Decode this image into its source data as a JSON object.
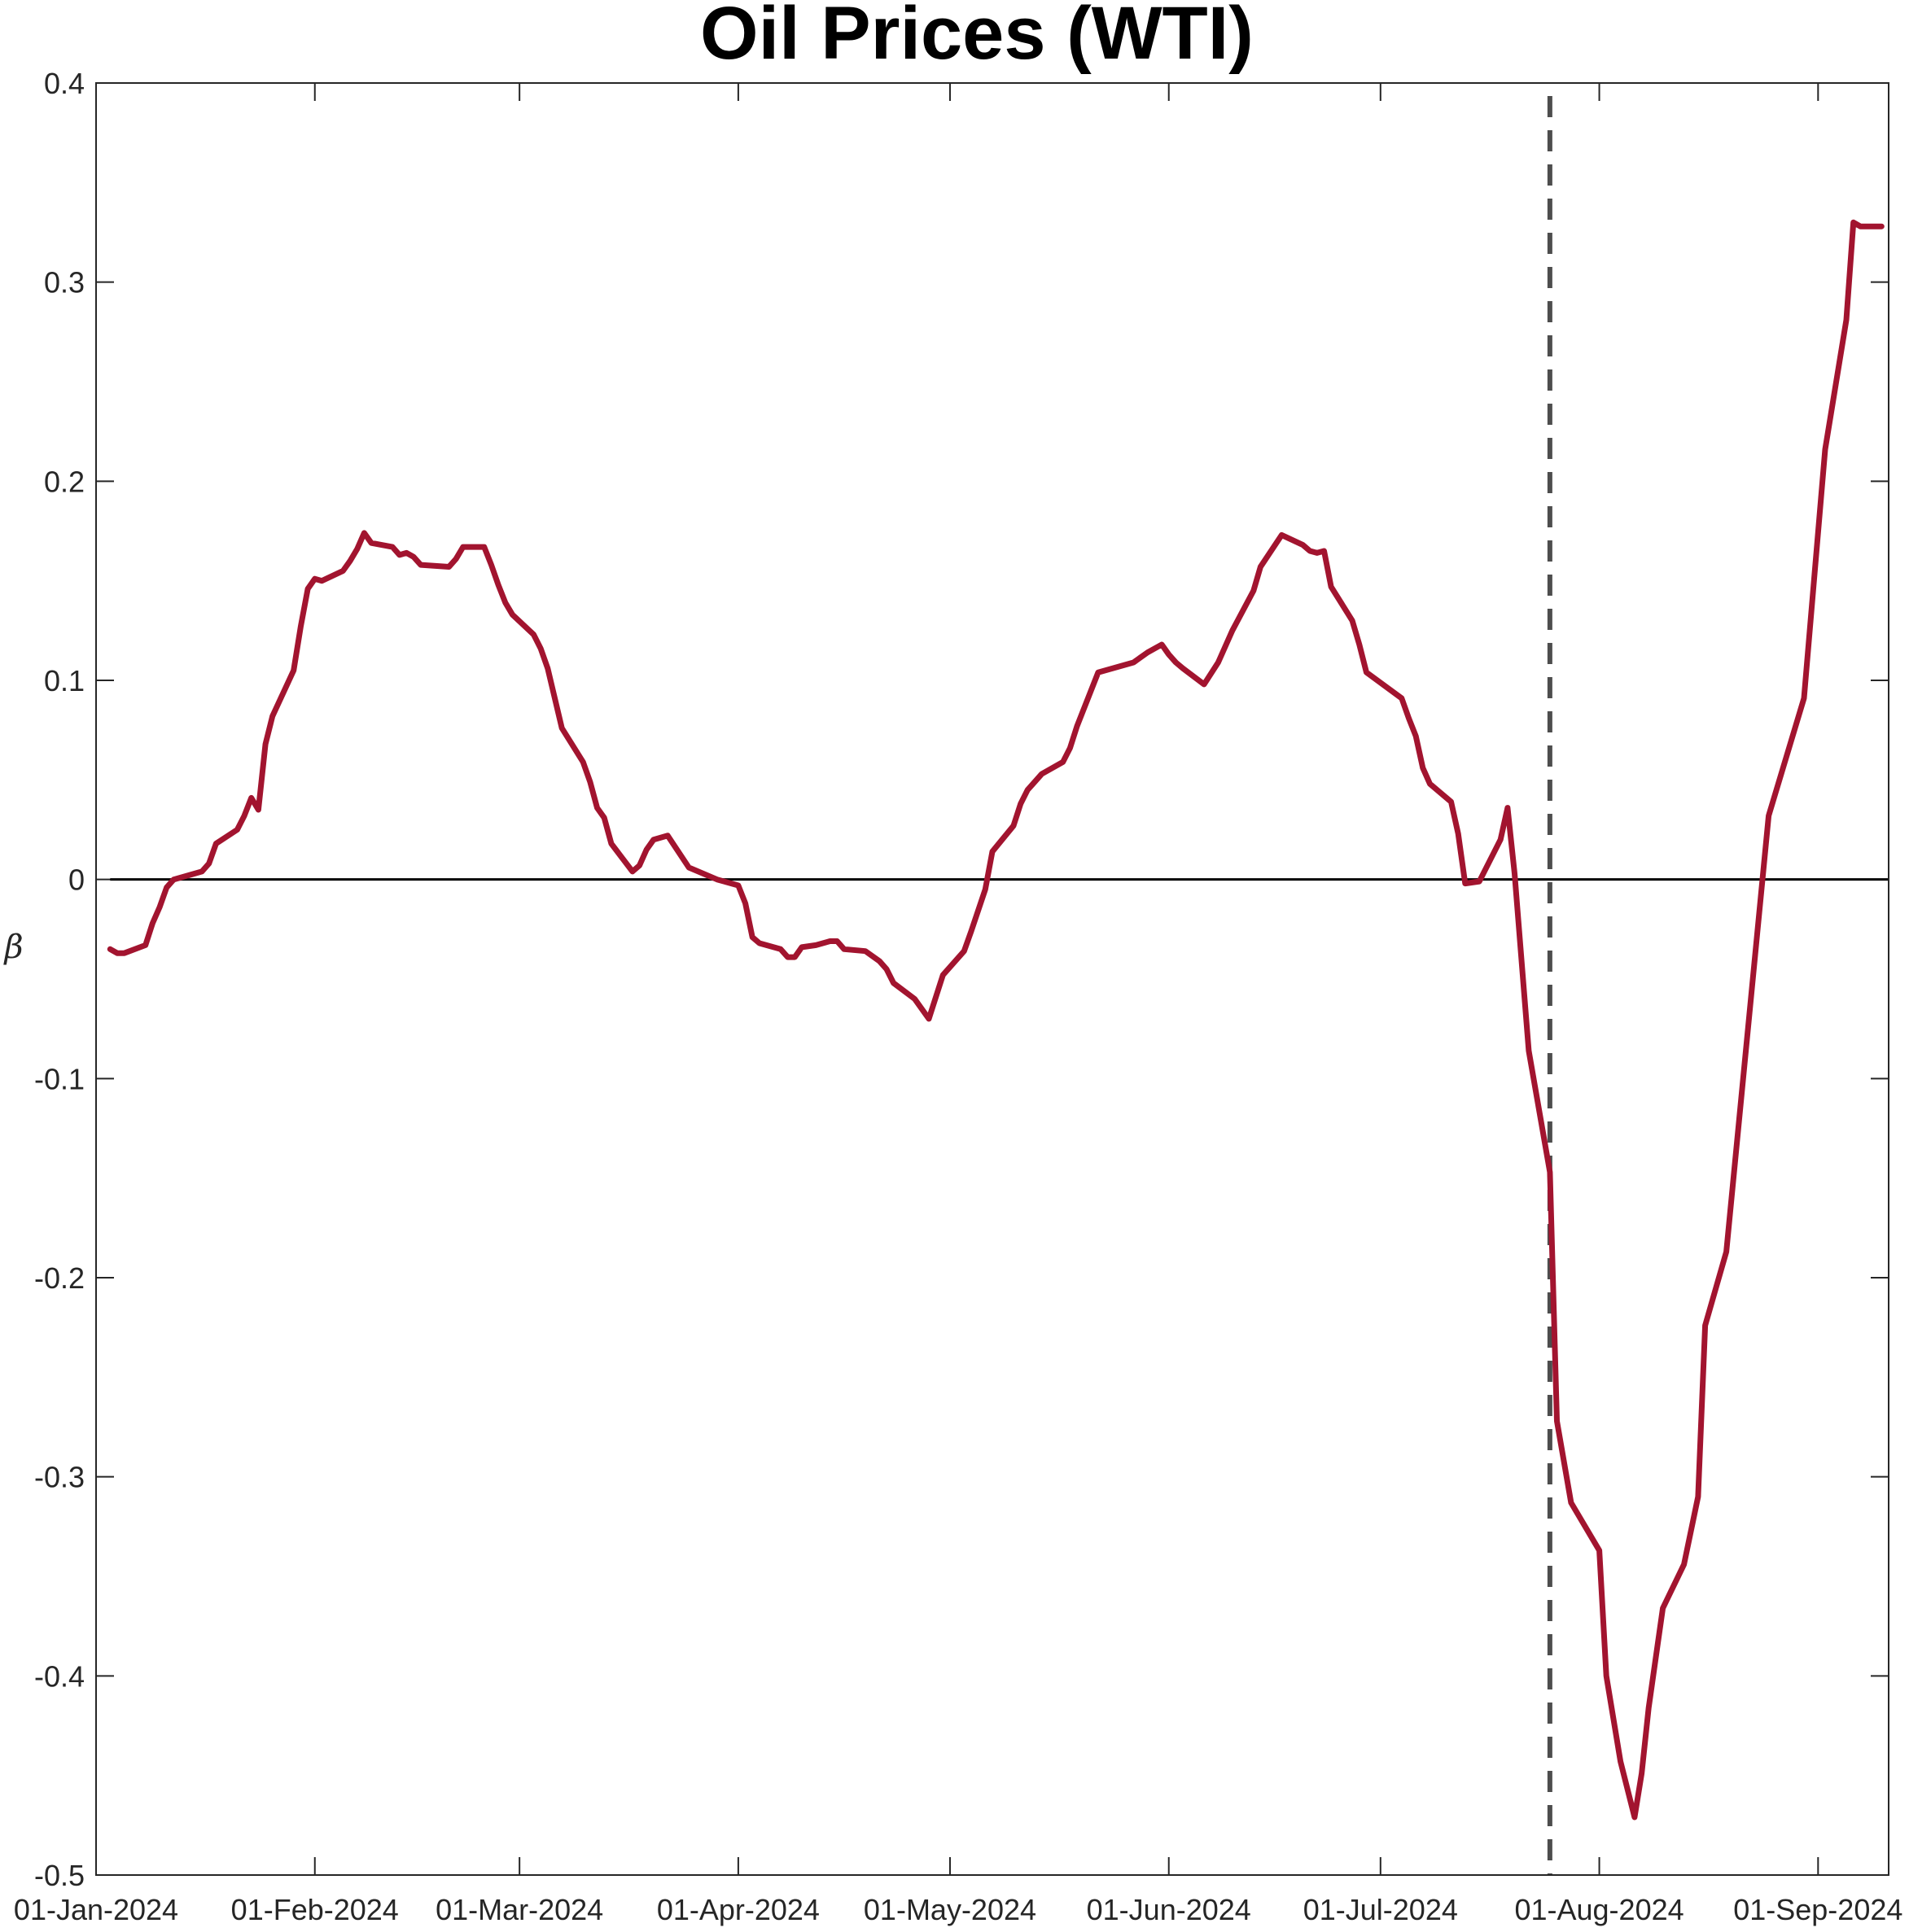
{
  "chart_data": {
    "type": "line",
    "title": "Oil Prices (WTI)",
    "xlabel": "",
    "ylabel": "β",
    "xlim": [
      "2024-01-01",
      "2024-09-11"
    ],
    "ylim": [
      -0.5,
      0.4
    ],
    "yticks": [
      -0.5,
      -0.4,
      -0.3,
      -0.2,
      -0.1,
      0,
      0.1,
      0.2,
      0.3,
      0.4
    ],
    "ytick_labels": [
      "-0.5",
      "-0.4",
      "-0.3",
      "-0.2",
      "-0.1",
      "0",
      "0.1",
      "0.2",
      "0.3",
      "0.4"
    ],
    "xticks": [
      "2024-01-01",
      "2024-02-01",
      "2024-03-01",
      "2024-04-01",
      "2024-05-01",
      "2024-06-01",
      "2024-07-01",
      "2024-08-01",
      "2024-09-01"
    ],
    "xtick_labels": [
      "01-Jan-2024",
      "01-Feb-2024",
      "01-Mar-2024",
      "01-Apr-2024",
      "01-May-2024",
      "01-Jun-2024",
      "01-Jul-2024",
      "01-Aug-2024",
      "01-Sep-2024"
    ],
    "grid": false,
    "zero_line": {
      "y": 0,
      "color": "#000000"
    },
    "vertical_marker": {
      "x": "2024-07-25",
      "style": "dashed",
      "color": "#4d4d4d"
    },
    "series": [
      {
        "color": "#a2142f",
        "points": [
          [
            "2024-01-03",
            -0.035
          ],
          [
            "2024-01-04",
            -0.037
          ],
          [
            "2024-01-05",
            -0.037
          ],
          [
            "2024-01-08",
            -0.033
          ],
          [
            "2024-01-09",
            -0.022
          ],
          [
            "2024-01-10",
            -0.014
          ],
          [
            "2024-01-11",
            -0.004
          ],
          [
            "2024-01-12",
            0.0
          ],
          [
            "2024-01-16",
            0.004
          ],
          [
            "2024-01-17",
            0.008
          ],
          [
            "2024-01-18",
            0.018
          ],
          [
            "2024-01-21",
            0.025
          ],
          [
            "2024-01-22",
            0.032
          ],
          [
            "2024-01-23",
            0.041
          ],
          [
            "2024-01-24",
            0.035
          ],
          [
            "2024-01-25",
            0.068
          ],
          [
            "2024-01-26",
            0.082
          ],
          [
            "2024-01-29",
            0.105
          ],
          [
            "2024-01-30",
            0.127
          ],
          [
            "2024-01-31",
            0.146
          ],
          [
            "2024-02-01",
            0.151
          ],
          [
            "2024-02-02",
            0.15
          ],
          [
            "2024-02-05",
            0.155
          ],
          [
            "2024-02-06",
            0.16
          ],
          [
            "2024-02-07",
            0.166
          ],
          [
            "2024-02-08",
            0.174
          ],
          [
            "2024-02-09",
            0.169
          ],
          [
            "2024-02-12",
            0.167
          ],
          [
            "2024-02-13",
            0.163
          ],
          [
            "2024-02-14",
            0.164
          ],
          [
            "2024-02-15",
            0.162
          ],
          [
            "2024-02-16",
            0.158
          ],
          [
            "2024-02-20",
            0.157
          ],
          [
            "2024-02-21",
            0.161
          ],
          [
            "2024-02-22",
            0.167
          ],
          [
            "2024-02-25",
            0.167
          ],
          [
            "2024-02-26",
            0.158
          ],
          [
            "2024-02-27",
            0.148
          ],
          [
            "2024-02-28",
            0.139
          ],
          [
            "2024-02-29",
            0.133
          ],
          [
            "2024-03-03",
            0.123
          ],
          [
            "2024-03-04",
            0.116
          ],
          [
            "2024-03-05",
            0.106
          ],
          [
            "2024-03-07",
            0.076
          ],
          [
            "2024-03-10",
            0.059
          ],
          [
            "2024-03-11",
            0.049
          ],
          [
            "2024-03-12",
            0.036
          ],
          [
            "2024-03-13",
            0.031
          ],
          [
            "2024-03-14",
            0.018
          ],
          [
            "2024-03-17",
            0.004
          ],
          [
            "2024-03-18",
            0.007
          ],
          [
            "2024-03-19",
            0.015
          ],
          [
            "2024-03-20",
            0.02
          ],
          [
            "2024-03-22",
            0.022
          ],
          [
            "2024-03-25",
            0.006
          ],
          [
            "2024-03-29",
            0.0
          ],
          [
            "2024-04-01",
            -0.003
          ],
          [
            "2024-04-02",
            -0.012
          ],
          [
            "2024-04-03",
            -0.029
          ],
          [
            "2024-04-04",
            -0.032
          ],
          [
            "2024-04-07",
            -0.035
          ],
          [
            "2024-04-08",
            -0.039
          ],
          [
            "2024-04-09",
            -0.039
          ],
          [
            "2024-04-10",
            -0.034
          ],
          [
            "2024-04-12",
            -0.033
          ],
          [
            "2024-04-14",
            -0.031
          ],
          [
            "2024-04-15",
            -0.031
          ],
          [
            "2024-04-16",
            -0.035
          ],
          [
            "2024-04-19",
            -0.036
          ],
          [
            "2024-04-21",
            -0.041
          ],
          [
            "2024-04-22",
            -0.045
          ],
          [
            "2024-04-23",
            -0.052
          ],
          [
            "2024-04-26",
            -0.06
          ],
          [
            "2024-04-28",
            -0.07
          ],
          [
            "2024-04-30",
            -0.048
          ],
          [
            "2024-05-03",
            -0.036
          ],
          [
            "2024-05-04",
            -0.026
          ],
          [
            "2024-05-06",
            -0.005
          ],
          [
            "2024-05-07",
            0.014
          ],
          [
            "2024-05-10",
            0.027
          ],
          [
            "2024-05-11",
            0.038
          ],
          [
            "2024-05-12",
            0.045
          ],
          [
            "2024-05-14",
            0.053
          ],
          [
            "2024-05-17",
            0.059
          ],
          [
            "2024-05-18",
            0.066
          ],
          [
            "2024-05-19",
            0.077
          ],
          [
            "2024-05-22",
            0.104
          ],
          [
            "2024-05-27",
            0.109
          ],
          [
            "2024-05-29",
            0.114
          ],
          [
            "2024-05-31",
            0.118
          ],
          [
            "2024-06-01",
            0.113
          ],
          [
            "2024-06-02",
            0.109
          ],
          [
            "2024-06-03",
            0.106
          ],
          [
            "2024-06-06",
            0.098
          ],
          [
            "2024-06-08",
            0.109
          ],
          [
            "2024-06-10",
            0.125
          ],
          [
            "2024-06-13",
            0.145
          ],
          [
            "2024-06-14",
            0.157
          ],
          [
            "2024-06-17",
            0.173
          ],
          [
            "2024-06-20",
            0.168
          ],
          [
            "2024-06-21",
            0.165
          ],
          [
            "2024-06-22",
            0.164
          ],
          [
            "2024-06-23",
            0.165
          ],
          [
            "2024-06-24",
            0.147
          ],
          [
            "2024-06-27",
            0.13
          ],
          [
            "2024-06-28",
            0.118
          ],
          [
            "2024-06-29",
            0.104
          ],
          [
            "2024-07-04",
            0.091
          ],
          [
            "2024-07-05",
            0.081
          ],
          [
            "2024-07-06",
            0.072
          ],
          [
            "2024-07-07",
            0.056
          ],
          [
            "2024-07-08",
            0.048
          ],
          [
            "2024-07-11",
            0.039
          ],
          [
            "2024-07-12",
            0.023
          ],
          [
            "2024-07-13",
            -0.002
          ],
          [
            "2024-07-15",
            -0.001
          ],
          [
            "2024-07-18",
            0.02
          ],
          [
            "2024-07-19",
            0.036
          ],
          [
            "2024-07-20",
            0.003
          ],
          [
            "2024-07-22",
            -0.086
          ],
          [
            "2024-07-25",
            -0.147
          ],
          [
            "2024-07-26",
            -0.272
          ],
          [
            "2024-07-28",
            -0.313
          ],
          [
            "2024-08-01",
            -0.337
          ],
          [
            "2024-08-02",
            -0.4
          ],
          [
            "2024-08-04",
            -0.443
          ],
          [
            "2024-08-06",
            -0.471
          ],
          [
            "2024-08-07",
            -0.449
          ],
          [
            "2024-08-08",
            -0.416
          ],
          [
            "2024-08-09",
            -0.391
          ],
          [
            "2024-08-10",
            -0.366
          ],
          [
            "2024-08-13",
            -0.344
          ],
          [
            "2024-08-15",
            -0.31
          ],
          [
            "2024-08-16",
            -0.224
          ],
          [
            "2024-08-19",
            -0.187
          ],
          [
            "2024-08-25",
            0.032
          ],
          [
            "2024-08-30",
            0.091
          ],
          [
            "2024-09-02",
            0.216
          ],
          [
            "2024-09-05",
            0.281
          ],
          [
            "2024-09-06",
            0.33
          ],
          [
            "2024-09-07",
            0.328
          ],
          [
            "2024-09-10",
            0.328
          ]
        ]
      }
    ]
  }
}
